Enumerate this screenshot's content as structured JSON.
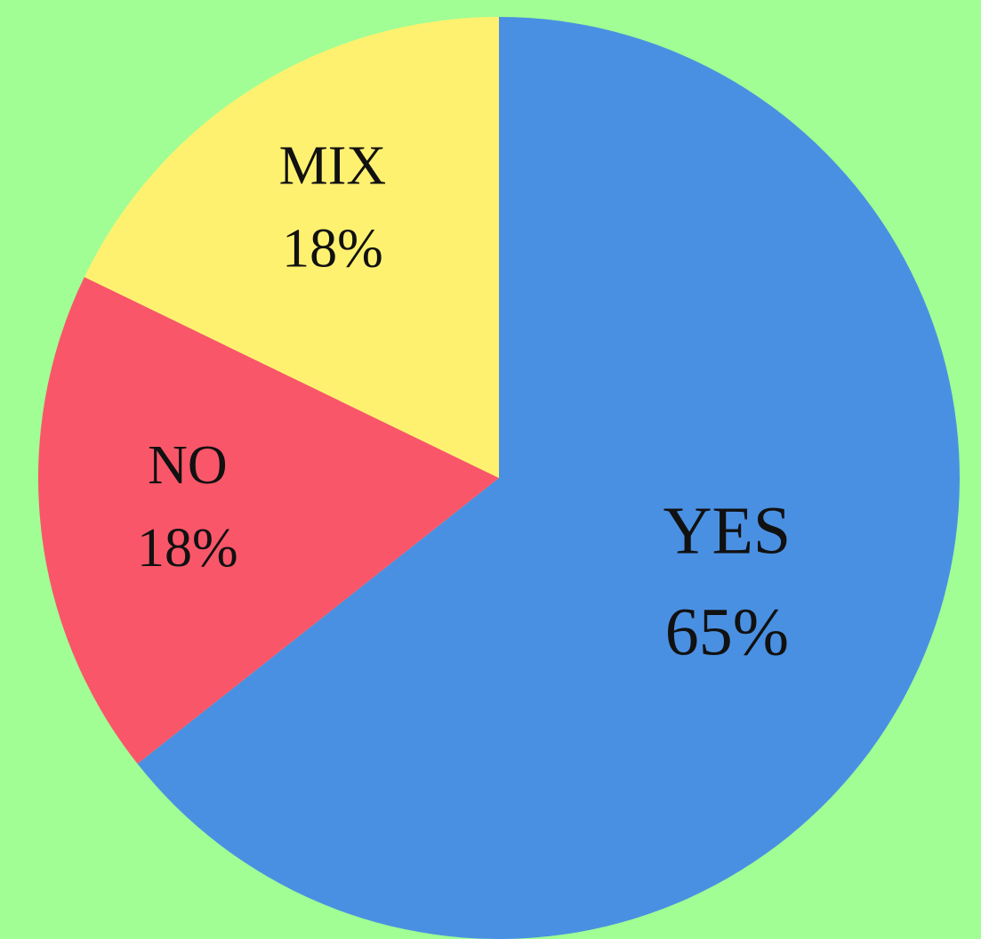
{
  "chart_data": {
    "type": "pie",
    "categories": [
      "YES",
      "NO",
      "MIX"
    ],
    "values": [
      65,
      18,
      18
    ],
    "value_labels": [
      "65%",
      "18%",
      "18%"
    ],
    "colors": [
      "#4a90e2",
      "#fa5669",
      "#fff170"
    ]
  }
}
